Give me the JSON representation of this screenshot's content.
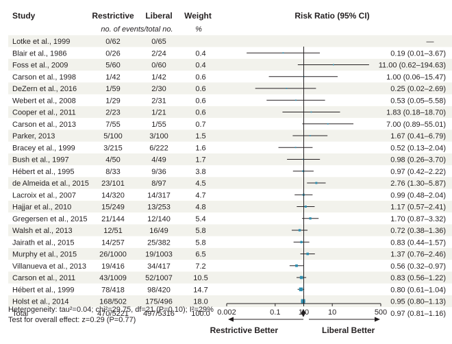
{
  "chart_data": {
    "type": "forest",
    "columns": {
      "study": "Study",
      "restrictive": "Restrictive",
      "liberal": "Liberal",
      "weight": "Weight",
      "ratio": "Risk Ratio (95% CI)"
    },
    "subheaders": {
      "events": "no. of events/total no.",
      "weight_unit": "%"
    },
    "studies": [
      {
        "name": "Lotke et al., 1999",
        "restrictive": "0/62",
        "liberal": "0/65",
        "weight": "",
        "rr_text": "—",
        "rr": null,
        "lo": null,
        "hi": null
      },
      {
        "name": "Blair et al., 1986",
        "restrictive": "0/26",
        "liberal": "2/24",
        "weight": "0.4",
        "rr_text": "0.19 (0.01–3.67)",
        "rr": 0.19,
        "lo": 0.01,
        "hi": 3.67
      },
      {
        "name": "Foss et al., 2009",
        "restrictive": "5/60",
        "liberal": "0/60",
        "weight": "0.4",
        "rr_text": "11.00 (0.62–194.63)",
        "rr": 11.0,
        "lo": 0.62,
        "hi": 194.63
      },
      {
        "name": "Carson et al., 1998",
        "restrictive": "1/42",
        "liberal": "1/42",
        "weight": "0.6",
        "rr_text": "1.00 (0.06–15.47)",
        "rr": 1.0,
        "lo": 0.06,
        "hi": 15.47
      },
      {
        "name": "DeZern et al., 2016",
        "restrictive": "1/59",
        "liberal": "2/30",
        "weight": "0.6",
        "rr_text": "0.25 (0.02–2.69)",
        "rr": 0.25,
        "lo": 0.02,
        "hi": 2.69
      },
      {
        "name": "Webert et al., 2008",
        "restrictive": "1/29",
        "liberal": "2/31",
        "weight": "0.6",
        "rr_text": "0.53 (0.05–5.58)",
        "rr": 0.53,
        "lo": 0.05,
        "hi": 5.58
      },
      {
        "name": "Cooper et al., 2011",
        "restrictive": "2/23",
        "liberal": "1/21",
        "weight": "0.6",
        "rr_text": "1.83 (0.18–18.70)",
        "rr": 1.83,
        "lo": 0.18,
        "hi": 18.7
      },
      {
        "name": "Carson et al., 2013",
        "restrictive": "7/55",
        "liberal": "1/55",
        "weight": "0.7",
        "rr_text": "7.00 (0.89–55.01)",
        "rr": 7.0,
        "lo": 0.89,
        "hi": 55.01
      },
      {
        "name": "Parker, 2013",
        "restrictive": "5/100",
        "liberal": "3/100",
        "weight": "1.5",
        "rr_text": "1.67 (0.41–6.79)",
        "rr": 1.67,
        "lo": 0.41,
        "hi": 6.79
      },
      {
        "name": "Bracey et al., 1999",
        "restrictive": "3/215",
        "liberal": "6/222",
        "weight": "1.6",
        "rr_text": "0.52 (0.13–2.04)",
        "rr": 0.52,
        "lo": 0.13,
        "hi": 2.04
      },
      {
        "name": "Bush et al., 1997",
        "restrictive": "4/50",
        "liberal": "4/49",
        "weight": "1.7",
        "rr_text": "0.98 (0.26–3.70)",
        "rr": 0.98,
        "lo": 0.26,
        "hi": 3.7
      },
      {
        "name": "Hébert et al., 1995",
        "restrictive": "8/33",
        "liberal": "9/36",
        "weight": "3.8",
        "rr_text": "0.97 (0.42–2.22)",
        "rr": 0.97,
        "lo": 0.42,
        "hi": 2.22
      },
      {
        "name": "de Almeida et al., 2015",
        "restrictive": "23/101",
        "liberal": "8/97",
        "weight": "4.5",
        "rr_text": "2.76 (1.30–5.87)",
        "rr": 2.76,
        "lo": 1.3,
        "hi": 5.87
      },
      {
        "name": "Lacroix et al., 2007",
        "restrictive": "14/320",
        "liberal": "14/317",
        "weight": "4.7",
        "rr_text": "0.99 (0.48–2.04)",
        "rr": 0.99,
        "lo": 0.48,
        "hi": 2.04
      },
      {
        "name": "Hajjar et al., 2010",
        "restrictive": "15/249",
        "liberal": "13/253",
        "weight": "4.8",
        "rr_text": "1.17 (0.57–2.41)",
        "rr": 1.17,
        "lo": 0.57,
        "hi": 2.41
      },
      {
        "name": "Gregersen et al., 2015",
        "restrictive": "21/144",
        "liberal": "12/140",
        "weight": "5.4",
        "rr_text": "1.70 (0.87–3.32)",
        "rr": 1.7,
        "lo": 0.87,
        "hi": 3.32
      },
      {
        "name": "Walsh et al., 2013",
        "restrictive": "12/51",
        "liberal": "16/49",
        "weight": "5.8",
        "rr_text": "0.72 (0.38–1.36)",
        "rr": 0.72,
        "lo": 0.38,
        "hi": 1.36
      },
      {
        "name": "Jairath et al., 2015",
        "restrictive": "14/257",
        "liberal": "25/382",
        "weight": "5.8",
        "rr_text": "0.83 (0.44–1.57)",
        "rr": 0.83,
        "lo": 0.44,
        "hi": 1.57
      },
      {
        "name": "Murphy et al., 2015",
        "restrictive": "26/1000",
        "liberal": "19/1003",
        "weight": "6.5",
        "rr_text": "1.37 (0.76–2.46)",
        "rr": 1.37,
        "lo": 0.76,
        "hi": 2.46
      },
      {
        "name": "Villanueva et al., 2013",
        "restrictive": "19/416",
        "liberal": "34/417",
        "weight": "7.2",
        "rr_text": "0.56 (0.32–0.97)",
        "rr": 0.56,
        "lo": 0.32,
        "hi": 0.97
      },
      {
        "name": "Carson et al., 2011",
        "restrictive": "43/1009",
        "liberal": "52/1007",
        "weight": "10.5",
        "rr_text": "0.83 (0.56–1.22)",
        "rr": 0.83,
        "lo": 0.56,
        "hi": 1.22
      },
      {
        "name": "Hébert et al., 1999",
        "restrictive": "78/418",
        "liberal": "98/420",
        "weight": "14.7",
        "rr_text": "0.80 (0.61–1.04)",
        "rr": 0.8,
        "lo": 0.61,
        "hi": 1.04
      },
      {
        "name": "Holst et al., 2014",
        "restrictive": "168/502",
        "liberal": "175/496",
        "weight": "18.0",
        "rr_text": "0.95 (0.80–1.13)",
        "rr": 0.95,
        "lo": 0.8,
        "hi": 1.13
      }
    ],
    "total": {
      "name": "Total",
      "restrictive": "470/5221",
      "liberal": "497/5316",
      "weight": "100.0",
      "rr_text": "0.97 (0.81–1.16)",
      "rr": 0.97,
      "lo": 0.81,
      "hi": 1.16
    },
    "heterogeneity": "Heterogeneity: tau²=0.04; chi²=29.75, df=21 (P=0.10); I²=29%",
    "overall_effect": "Test for overall effect: z=0.29 (P=0.77)",
    "axis": {
      "scale": "log",
      "range": [
        0.002,
        500
      ],
      "ticks": [
        0.002,
        0.1,
        1.0,
        10,
        500
      ],
      "tick_labels": [
        "0.002",
        "0.1",
        "1.0",
        "10",
        "500"
      ],
      "reference": 1.0
    },
    "direction_labels": {
      "left": "Restrictive Better",
      "right": "Liberal Better"
    },
    "colors": {
      "stripe": "#f2f2ec",
      "marker": "#2f8fb0",
      "text": "#231f20"
    }
  }
}
